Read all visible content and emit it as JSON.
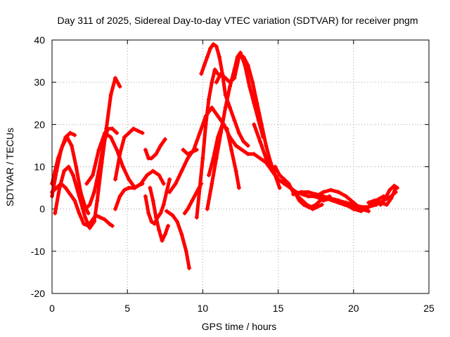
{
  "chart_data": {
    "type": "scatter",
    "title": "Day 311 of 2025, Sidereal Day-to-day VTEC variation (SDTVAR) for receiver pngm",
    "xlabel": "GPS time / hours",
    "ylabel": "SDTVAR / TECUs",
    "xlim": [
      0,
      25
    ],
    "ylim": [
      -20,
      40
    ],
    "xticks": [
      "0",
      "5",
      "10",
      "15",
      "20",
      "25"
    ],
    "yticks": [
      "-20",
      "-10",
      "0",
      "10",
      "20",
      "30",
      "40"
    ],
    "grid": true,
    "marker": "+",
    "color": "#ff0000",
    "series": [
      {
        "name": "s1",
        "x": [
          0.0,
          0.3,
          0.6,
          0.9,
          1.2,
          1.5
        ],
        "y": [
          3,
          9,
          14,
          17,
          18,
          17.5
        ]
      },
      {
        "name": "s2",
        "x": [
          0.2,
          0.5,
          0.8,
          1.1,
          1.4,
          1.8,
          2.2,
          2.5,
          2.8,
          3.0,
          3.3,
          3.6,
          3.9,
          4.2,
          4.5
        ],
        "y": [
          -1,
          5,
          9,
          10,
          8,
          3,
          -2,
          -4.5,
          -3,
          2,
          11,
          19,
          27,
          31,
          29
        ]
      },
      {
        "name": "s3",
        "x": [
          0.0,
          0.3,
          0.6,
          0.9,
          1.2,
          1.5,
          1.8,
          2.1,
          2.4,
          2.6,
          2.9,
          3.2,
          3.5,
          3.8,
          4.0
        ],
        "y": [
          4,
          5,
          6,
          5,
          3.5,
          2,
          -1,
          -3.5,
          -4,
          -3,
          -1.5,
          -2,
          -2.5,
          -3.5,
          -4
        ]
      },
      {
        "name": "s4",
        "x": [
          0.0,
          0.2,
          0.4,
          0.7,
          1.0,
          1.3,
          1.6,
          1.9,
          2.2,
          2.4
        ],
        "y": [
          6,
          9,
          12,
          15,
          17,
          15,
          10,
          4,
          0.5,
          -1
        ]
      },
      {
        "name": "s5",
        "x": [
          2.3,
          2.7,
          3.1,
          3.5,
          3.9,
          4.3,
          4.7,
          5.1,
          5.5,
          5.9,
          6.3,
          6.7,
          7.1,
          7.4
        ],
        "y": [
          6,
          8,
          14,
          18,
          17,
          14,
          10,
          7,
          5,
          6,
          8,
          9,
          8,
          6
        ]
      },
      {
        "name": "s6",
        "x": [
          2.2,
          2.5,
          2.8,
          3.1,
          3.4,
          3.7,
          4.0,
          4.3
        ],
        "y": [
          0,
          1,
          4,
          9,
          15,
          19,
          19,
          18
        ]
      },
      {
        "name": "s7",
        "x": [
          4.2,
          4.5,
          4.8,
          5.1,
          5.4,
          5.7,
          6.0
        ],
        "y": [
          7,
          13,
          17,
          18,
          19,
          18.5,
          18
        ]
      },
      {
        "name": "s8",
        "x": [
          4.2,
          4.5,
          4.8,
          5.1,
          5.4,
          5.7,
          6.0
        ],
        "y": [
          0,
          3,
          4.5,
          5,
          5,
          5.5,
          6
        ]
      },
      {
        "name": "s9",
        "x": [
          6.2,
          6.4,
          6.6,
          6.9,
          7.2,
          7.5
        ],
        "y": [
          14,
          12,
          12,
          13,
          15,
          16.5
        ]
      },
      {
        "name": "s10",
        "x": [
          6.2,
          6.4,
          6.6,
          6.8,
          7.0,
          7.2,
          7.4,
          7.6,
          7.8
        ],
        "y": [
          3,
          -1,
          -3,
          -3.5,
          -2,
          -1,
          1,
          4,
          7
        ]
      },
      {
        "name": "s11",
        "x": [
          6.5,
          6.7,
          6.9,
          7.1,
          7.3,
          7.5,
          7.7
        ],
        "y": [
          5,
          2,
          -2,
          -5,
          -7.5,
          -6,
          -4
        ]
      },
      {
        "name": "s12",
        "x": [
          7.6,
          7.8,
          8.0,
          8.3,
          8.6,
          8.9,
          9.1
        ],
        "y": [
          -0.5,
          -1,
          -1.5,
          -3,
          -6,
          -10,
          -14
        ]
      },
      {
        "name": "s13",
        "x": [
          7.8,
          8.2,
          8.6,
          9.0,
          9.4,
          9.8,
          10.2,
          10.6,
          11.0,
          11.4,
          11.8,
          12.2,
          12.6,
          13.0,
          13.4,
          13.8,
          14.2,
          14.6,
          15.0
        ],
        "y": [
          4,
          6,
          9,
          12,
          14,
          18,
          22,
          24,
          22,
          20,
          17,
          15,
          14,
          13,
          13,
          12,
          11,
          9,
          7
        ]
      },
      {
        "name": "s14",
        "x": [
          8.8,
          9.0,
          9.3,
          9.6,
          9.9
        ],
        "y": [
          -1,
          0,
          2,
          4,
          6
        ]
      },
      {
        "name": "s15",
        "x": [
          8.7,
          9.0,
          9.3,
          9.6
        ],
        "y": [
          14,
          13,
          13.5,
          14
        ]
      },
      {
        "name": "s16",
        "x": [
          9.6,
          9.8,
          10.0,
          10.2,
          10.4,
          10.6,
          10.8,
          11.0
        ],
        "y": [
          -2,
          5,
          12,
          20,
          26,
          30,
          33,
          32
        ]
      },
      {
        "name": "s17",
        "x": [
          9.9,
          10.1,
          10.3,
          10.5,
          10.7,
          10.9,
          11.1,
          11.3,
          11.5,
          11.8,
          12.1,
          12.4,
          12.7,
          13.0
        ],
        "y": [
          32,
          34,
          36,
          38,
          39,
          38.5,
          36,
          32,
          27,
          24,
          21,
          18,
          16,
          15
        ]
      },
      {
        "name": "s18",
        "x": [
          10.3,
          10.6,
          10.9,
          11.2,
          11.5,
          11.8,
          12.1,
          12.3,
          12.5,
          12.8,
          13.1,
          13.4,
          13.7,
          14.0
        ],
        "y": [
          0,
          6,
          12,
          18,
          24,
          29,
          33,
          36,
          37,
          34,
          29,
          25,
          21,
          17
        ]
      },
      {
        "name": "s19",
        "x": [
          10.9,
          11.2,
          11.5,
          11.8,
          12.1,
          12.4,
          12.7,
          13.0,
          13.3,
          13.6,
          13.9,
          14.2,
          14.5,
          14.8,
          15.1
        ],
        "y": [
          30,
          32,
          31,
          30,
          31,
          36,
          36,
          34,
          30,
          25,
          20,
          15,
          11,
          8,
          5
        ]
      },
      {
        "name": "s20",
        "x": [
          10.4,
          10.7,
          11.0,
          11.3,
          11.6,
          11.9,
          12.2,
          12.4
        ],
        "y": [
          8,
          12,
          17,
          20,
          19,
          14,
          9,
          5
        ]
      },
      {
        "name": "s21",
        "x": [
          13.4,
          13.8,
          14.2,
          14.6,
          15.0,
          15.4,
          15.8,
          16.2,
          16.6,
          17.0,
          17.4,
          17.8,
          18.2,
          18.6,
          19.0,
          19.4,
          19.8,
          20.2
        ],
        "y": [
          20,
          16,
          12,
          9,
          7,
          6,
          5,
          4,
          3.5,
          3,
          3,
          2.5,
          2.5,
          2,
          1.5,
          1,
          0.5,
          0
        ]
      },
      {
        "name": "s22",
        "x": [
          14.8,
          15.1,
          15.4,
          15.7,
          16.0,
          16.3,
          16.6,
          16.9,
          17.2,
          17.5,
          17.8,
          18.1,
          18.4
        ],
        "y": [
          10,
          8,
          7,
          6,
          4,
          3,
          2,
          1,
          0.5,
          1,
          2,
          2.5,
          3
        ]
      },
      {
        "name": "s23",
        "x": [
          15.5,
          15.8,
          16.1,
          16.4,
          16.7,
          17.0,
          17.3,
          17.6,
          17.9
        ],
        "y": [
          6,
          5,
          4,
          2,
          1,
          0.5,
          0,
          0.5,
          1
        ]
      },
      {
        "name": "s24",
        "x": [
          16.0,
          16.5,
          17.0,
          17.5,
          18.0,
          18.5,
          19.0,
          19.5,
          20.0,
          20.5,
          21.0,
          21.5,
          22.0,
          22.5,
          22.8
        ],
        "y": [
          3.5,
          4,
          4,
          3.5,
          3,
          2.5,
          2,
          1.5,
          1,
          0.5,
          0.5,
          1,
          2,
          3,
          4
        ]
      },
      {
        "name": "s25",
        "x": [
          17.5,
          18.0,
          18.5,
          19.0,
          19.5,
          20.0,
          20.5,
          21.0
        ],
        "y": [
          3,
          4,
          4.5,
          4,
          3,
          1.5,
          0,
          -0.5
        ]
      },
      {
        "name": "s26",
        "x": [
          18.0,
          18.5,
          19.0,
          19.5,
          20.0,
          20.5,
          21.0,
          21.5,
          22.0
        ],
        "y": [
          2,
          2.5,
          2,
          1,
          0,
          -0.5,
          0.5,
          2,
          3
        ]
      },
      {
        "name": "s27",
        "x": [
          21.0,
          21.4,
          21.8,
          22.2,
          22.5,
          22.8
        ],
        "y": [
          1.5,
          2,
          1.5,
          1,
          2.5,
          5
        ]
      },
      {
        "name": "s28",
        "x": [
          21.8,
          22.1,
          22.4,
          22.7,
          22.9
        ],
        "y": [
          1,
          2.5,
          4.5,
          5.5,
          5
        ]
      }
    ]
  }
}
